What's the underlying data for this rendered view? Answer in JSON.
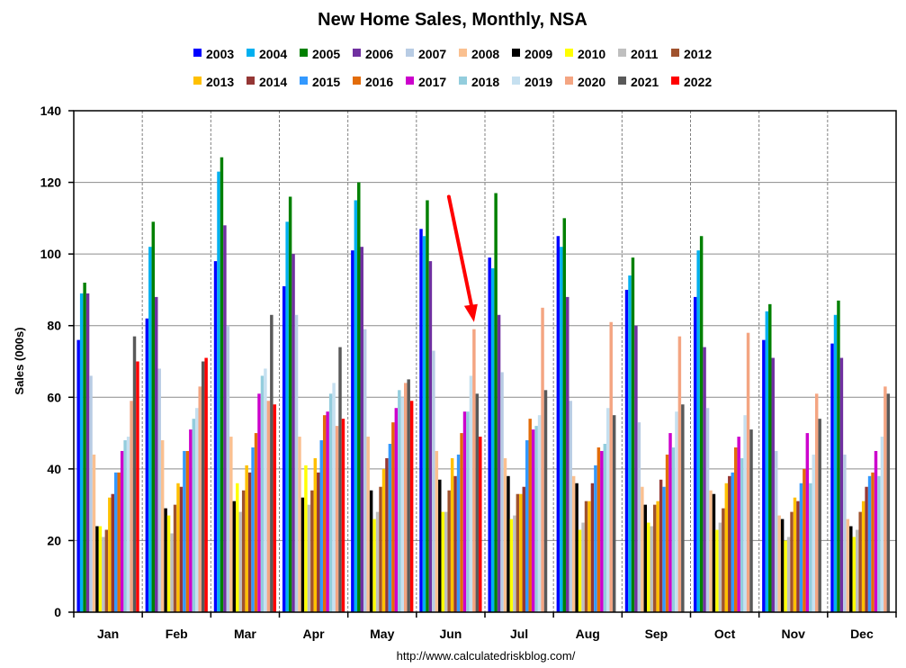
{
  "chart_data": {
    "type": "bar",
    "title": "New Home Sales, Monthly, NSA",
    "xlabel": "",
    "ylabel": "Sales (000s)",
    "ylim": [
      0,
      140
    ],
    "yticks": [
      0,
      20,
      40,
      60,
      80,
      100,
      120,
      140
    ],
    "grid": "horizontal gridlines; dashed vertical separators between months",
    "legend_position": "top",
    "categories": [
      "Jan",
      "Feb",
      "Mar",
      "Apr",
      "May",
      "Jun",
      "Jul",
      "Aug",
      "Sep",
      "Oct",
      "Nov",
      "Dec"
    ],
    "series": [
      {
        "name": "2003",
        "color": "#0000ff",
        "values": [
          76,
          82,
          98,
          91,
          101,
          107,
          99,
          105,
          90,
          88,
          76,
          75
        ]
      },
      {
        "name": "2004",
        "color": "#00b0f0",
        "values": [
          89,
          102,
          123,
          109,
          115,
          105,
          96,
          102,
          94,
          101,
          84,
          83
        ]
      },
      {
        "name": "2005",
        "color": "#008000",
        "values": [
          92,
          109,
          127,
          116,
          120,
          115,
          117,
          110,
          99,
          105,
          86,
          87
        ]
      },
      {
        "name": "2006",
        "color": "#7030a0",
        "values": [
          89,
          88,
          108,
          100,
          102,
          98,
          83,
          88,
          80,
          74,
          71,
          71
        ]
      },
      {
        "name": "2007",
        "color": "#b8cce4",
        "values": [
          66,
          68,
          80,
          83,
          79,
          73,
          67,
          59,
          53,
          57,
          45,
          44
        ]
      },
      {
        "name": "2008",
        "color": "#fac090",
        "values": [
          44,
          48,
          49,
          49,
          49,
          45,
          43,
          38,
          35,
          34,
          27,
          26
        ]
      },
      {
        "name": "2009",
        "color": "#000000",
        "values": [
          24,
          29,
          31,
          32,
          34,
          37,
          38,
          36,
          30,
          33,
          26,
          24
        ]
      },
      {
        "name": "2010",
        "color": "#ffff00",
        "values": [
          24,
          27,
          36,
          41,
          26,
          28,
          26,
          23,
          25,
          23,
          20,
          21
        ]
      },
      {
        "name": "2011",
        "color": "#bfbfbf",
        "values": [
          21,
          22,
          28,
          30,
          28,
          28,
          27,
          25,
          24,
          25,
          21,
          23
        ]
      },
      {
        "name": "2012",
        "color": "#a0522d",
        "values": [
          23,
          30,
          34,
          34,
          35,
          34,
          33,
          31,
          30,
          29,
          28,
          28
        ]
      },
      {
        "name": "2013",
        "color": "#ffc000",
        "values": [
          32,
          36,
          41,
          43,
          40,
          43,
          33,
          31,
          31,
          36,
          32,
          31
        ]
      },
      {
        "name": "2014",
        "color": "#953735",
        "values": [
          33,
          35,
          39,
          39,
          43,
          38,
          35,
          36,
          37,
          38,
          31,
          35
        ]
      },
      {
        "name": "2015",
        "color": "#3399ff",
        "values": [
          39,
          45,
          46,
          48,
          47,
          44,
          48,
          41,
          35,
          39,
          36,
          38
        ]
      },
      {
        "name": "2016",
        "color": "#e36c09",
        "values": [
          39,
          45,
          50,
          55,
          53,
          50,
          54,
          46,
          44,
          46,
          40,
          39
        ]
      },
      {
        "name": "2017",
        "color": "#cc00cc",
        "values": [
          45,
          51,
          61,
          56,
          57,
          56,
          51,
          45,
          50,
          49,
          50,
          45
        ]
      },
      {
        "name": "2018",
        "color": "#93cddd",
        "values": [
          48,
          54,
          66,
          61,
          62,
          56,
          52,
          47,
          46,
          43,
          36,
          38
        ]
      },
      {
        "name": "2019",
        "color": "#c6e0f0",
        "values": [
          49,
          57,
          68,
          64,
          60,
          66,
          55,
          57,
          56,
          55,
          44,
          49
        ]
      },
      {
        "name": "2020",
        "color": "#f4a582",
        "values": [
          59,
          63,
          59,
          52,
          64,
          79,
          85,
          81,
          77,
          78,
          61,
          63
        ]
      },
      {
        "name": "2021",
        "color": "#595959",
        "values": [
          77,
          70,
          83,
          74,
          65,
          61,
          62,
          55,
          58,
          51,
          54,
          61
        ]
      },
      {
        "name": "2022",
        "color": "#ff0000",
        "values": [
          70,
          71,
          58,
          54,
          59,
          49,
          null,
          null,
          null,
          null,
          null,
          null
        ]
      }
    ],
    "annotations": [
      {
        "type": "arrow",
        "color": "#ff0000",
        "points_to": "Jun 2020 bar"
      }
    ],
    "source": "http://www.calculatedriskblog.com/"
  }
}
